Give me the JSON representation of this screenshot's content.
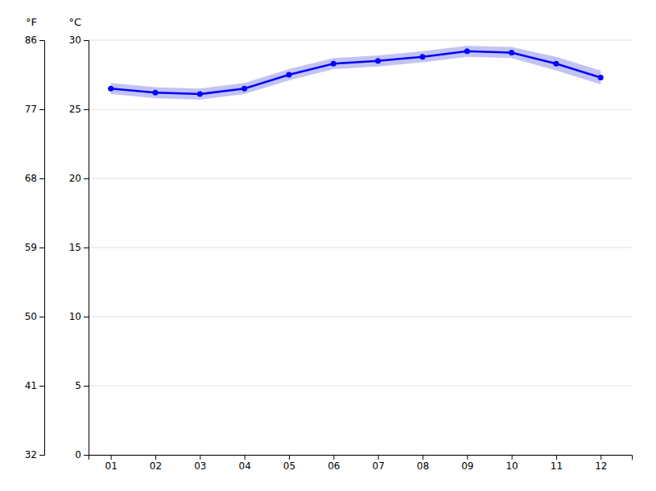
{
  "chart_data": {
    "type": "line",
    "x": [
      1,
      2,
      3,
      4,
      5,
      6,
      7,
      8,
      9,
      10,
      11,
      12
    ],
    "xlim": [
      0.5,
      12.7
    ],
    "xticks": [
      {
        "value": 1,
        "label": "01"
      },
      {
        "value": 2,
        "label": "02"
      },
      {
        "value": 3,
        "label": "03"
      },
      {
        "value": 4,
        "label": "04"
      },
      {
        "value": 5,
        "label": "05"
      },
      {
        "value": 6,
        "label": "06"
      },
      {
        "value": 7,
        "label": "07"
      },
      {
        "value": 8,
        "label": "08"
      },
      {
        "value": 9,
        "label": "09"
      },
      {
        "value": 10,
        "label": "10"
      },
      {
        "value": 11,
        "label": "11"
      },
      {
        "value": 12,
        "label": "12"
      }
    ],
    "ylabel": "°C",
    "ylim": [
      0,
      30
    ],
    "yticks": [
      0,
      5,
      10,
      15,
      20,
      25,
      30
    ],
    "y2label": "°F",
    "y2lim": [
      32,
      86
    ],
    "y2ticks": [
      32,
      41,
      50,
      59,
      68,
      77,
      86
    ],
    "grid": true,
    "series": [
      {
        "type": "band",
        "color": "#aaaaee",
        "lower": [
          26.1,
          25.8,
          25.7,
          26.1,
          27.1,
          27.9,
          28.1,
          28.4,
          28.8,
          28.7,
          27.8,
          26.8
        ],
        "upper": [
          26.9,
          26.6,
          26.5,
          26.9,
          27.9,
          28.7,
          28.9,
          29.2,
          29.6,
          29.5,
          28.8,
          27.8
        ]
      },
      {
        "type": "line",
        "color": "#0000ff",
        "marker": "circle",
        "values": [
          26.5,
          26.2,
          26.1,
          26.5,
          27.5,
          28.3,
          28.5,
          28.8,
          29.2,
          29.1,
          28.3,
          27.3
        ]
      }
    ]
  }
}
